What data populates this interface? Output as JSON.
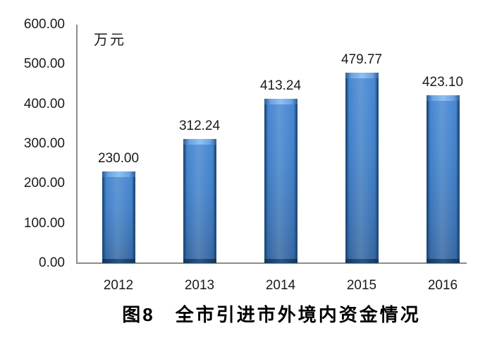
{
  "chart_data": {
    "type": "bar",
    "title": "图8　全市引进市外境内资金情况",
    "unit_label": "万元",
    "categories": [
      "2012",
      "2013",
      "2014",
      "2015",
      "2016"
    ],
    "values": [
      230.0,
      312.24,
      413.24,
      479.77,
      423.1
    ],
    "data_labels": [
      "230.00",
      "312.24",
      "413.24",
      "479.77",
      "423.10"
    ],
    "yticks": [
      {
        "value": 600,
        "label": "600.00"
      },
      {
        "value": 500,
        "label": "500.00"
      },
      {
        "value": 400,
        "label": "400.00"
      },
      {
        "value": 300,
        "label": "300.00"
      },
      {
        "value": 200,
        "label": "200.00"
      },
      {
        "value": 100,
        "label": "100.00"
      },
      {
        "value": 0,
        "label": "0.00"
      }
    ],
    "ylim": [
      0,
      600
    ],
    "ytick_interval": 100,
    "xlabel": "",
    "ylabel": "万元",
    "grid": false,
    "legend": false,
    "plot_background": "#ffffff",
    "bar_color": "#3E7CC4",
    "bar_edge_color": "#1E4A7A",
    "bar_highlight_color": "#8FC0F0",
    "axis_color": "#8C8C8C",
    "text_color": "#1A1A1A",
    "title_color": "#000000"
  }
}
